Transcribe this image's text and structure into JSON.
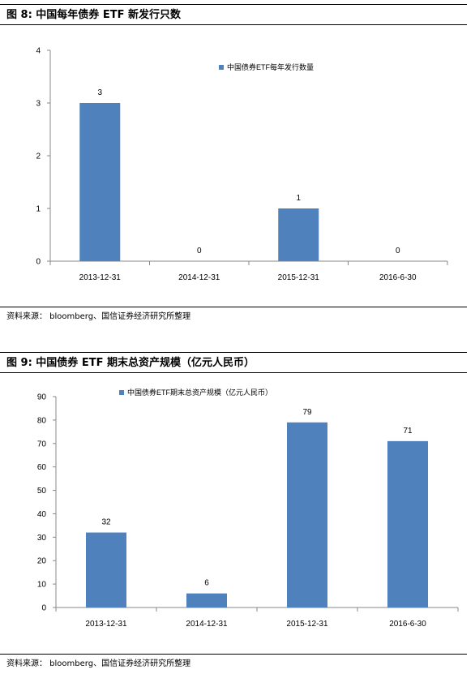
{
  "figures": [
    {
      "title": "图 8:  中国每年债券 ETF 新发行只数",
      "source": "资料来源： bloomberg、国信证券经济研究所整理"
    },
    {
      "title": "图 9:  中国债券 ETF 期末总资产规模（亿元人民币）",
      "source": "资料来源： bloomberg、国信证券经济研究所整理"
    }
  ],
  "chart_data": [
    {
      "type": "bar",
      "categories": [
        "2013-12-31",
        "2014-12-31",
        "2015-12-31",
        "2016-6-30"
      ],
      "series": [
        {
          "name": "中国债券ETF每年发行数量",
          "values": [
            3,
            0,
            1,
            0
          ]
        }
      ],
      "ylim": [
        0,
        4
      ],
      "yticks": [
        0,
        1,
        2,
        3,
        4
      ],
      "legend": "top-right",
      "bar_color": "#4f81bd"
    },
    {
      "type": "bar",
      "categories": [
        "2013-12-31",
        "2014-12-31",
        "2015-12-31",
        "2016-6-30"
      ],
      "series": [
        {
          "name": "中国债券ETF期末总资产规模（亿元人民币）",
          "values": [
            32,
            6,
            79,
            71
          ]
        }
      ],
      "ylim": [
        0,
        90
      ],
      "yticks": [
        0,
        10,
        20,
        30,
        40,
        50,
        60,
        70,
        80,
        90
      ],
      "legend": "top-center",
      "bar_color": "#4f81bd"
    }
  ]
}
